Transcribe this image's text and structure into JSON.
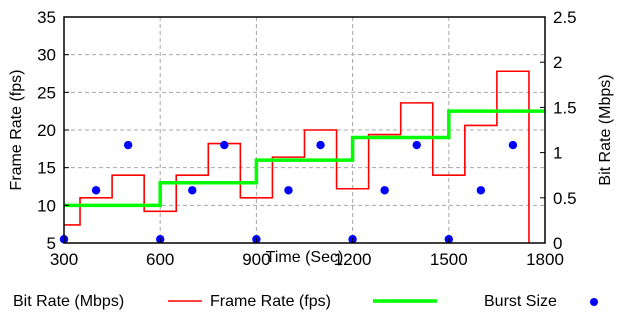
{
  "chart_data": {
    "type": "line",
    "x_axis": {
      "label": "Time (Sec)",
      "range": [
        300,
        1800
      ],
      "ticks": [
        300,
        600,
        900,
        1200,
        1500,
        1800
      ],
      "tick_labels": [
        "300",
        "600",
        "900",
        "1200",
        "1500",
        "1800"
      ]
    },
    "y_axis_left": {
      "label": "Frame Rate (fps)",
      "range": [
        5,
        35
      ],
      "ticks": [
        5,
        10,
        15,
        20,
        25,
        30,
        35
      ],
      "tick_labels": [
        "5",
        "10",
        "15",
        "20",
        "25",
        "30",
        "35"
      ]
    },
    "y_axis_right": {
      "label": "Bit Rate (Mbps)",
      "range": [
        0,
        2.5
      ],
      "ticks": [
        0,
        0.5,
        1,
        1.5,
        2,
        2.5
      ],
      "tick_labels": [
        "0",
        "0.5",
        "1",
        "1.5",
        "2",
        "2.5"
      ]
    },
    "grid": true,
    "series": [
      {
        "name": "Bit Rate (Mbps)",
        "axis": "right",
        "color": "#ff0000",
        "style": "step",
        "steps": [
          {
            "x0": 300,
            "x1": 350,
            "y": 0.2
          },
          {
            "x0": 350,
            "x1": 450,
            "y": 0.5
          },
          {
            "x0": 450,
            "x1": 550,
            "y": 0.75
          },
          {
            "x0": 550,
            "x1": 650,
            "y": 0.35
          },
          {
            "x0": 650,
            "x1": 750,
            "y": 0.75
          },
          {
            "x0": 750,
            "x1": 850,
            "y": 1.1
          },
          {
            "x0": 850,
            "x1": 950,
            "y": 0.5
          },
          {
            "x0": 950,
            "x1": 1050,
            "y": 0.95
          },
          {
            "x0": 1050,
            "x1": 1150,
            "y": 1.25
          },
          {
            "x0": 1150,
            "x1": 1250,
            "y": 0.6
          },
          {
            "x0": 1250,
            "x1": 1350,
            "y": 1.2
          },
          {
            "x0": 1350,
            "x1": 1450,
            "y": 1.55
          },
          {
            "x0": 1450,
            "x1": 1550,
            "y": 0.75
          },
          {
            "x0": 1550,
            "x1": 1650,
            "y": 1.3
          },
          {
            "x0": 1650,
            "x1": 1750,
            "y": 1.9
          }
        ],
        "drop_to": 0
      },
      {
        "name": "Frame Rate (fps)",
        "axis": "left",
        "color": "#00ff00",
        "style": "step",
        "steps": [
          {
            "x0": 300,
            "x1": 600,
            "y": 10
          },
          {
            "x0": 600,
            "x1": 900,
            "y": 13
          },
          {
            "x0": 900,
            "x1": 1200,
            "y": 16
          },
          {
            "x0": 1200,
            "x1": 1500,
            "y": 19
          },
          {
            "x0": 1500,
            "x1": 1800,
            "y": 22.5
          }
        ]
      },
      {
        "name": "Burst Size",
        "axis": "left",
        "color": "#0000ff",
        "style": "scatter",
        "points": [
          {
            "x": 300,
            "y": 5.5
          },
          {
            "x": 400,
            "y": 12
          },
          {
            "x": 500,
            "y": 18
          },
          {
            "x": 600,
            "y": 5.5
          },
          {
            "x": 700,
            "y": 12
          },
          {
            "x": 800,
            "y": 18
          },
          {
            "x": 900,
            "y": 5.5
          },
          {
            "x": 1000,
            "y": 12
          },
          {
            "x": 1100,
            "y": 18
          },
          {
            "x": 1200,
            "y": 5.5
          },
          {
            "x": 1300,
            "y": 12
          },
          {
            "x": 1400,
            "y": 18
          },
          {
            "x": 1500,
            "y": 5.5
          },
          {
            "x": 1600,
            "y": 12
          },
          {
            "x": 1700,
            "y": 18
          }
        ]
      }
    ],
    "legend": {
      "placement": "bottom",
      "items": [
        {
          "label": "Bit Rate (Mbps)",
          "swatch": "line",
          "color": "#ff0000"
        },
        {
          "label": "Frame Rate (fps)",
          "swatch": "line",
          "color": "#00ff00"
        },
        {
          "label": "Burst Size",
          "swatch": "dot",
          "color": "#0000ff"
        }
      ]
    }
  }
}
